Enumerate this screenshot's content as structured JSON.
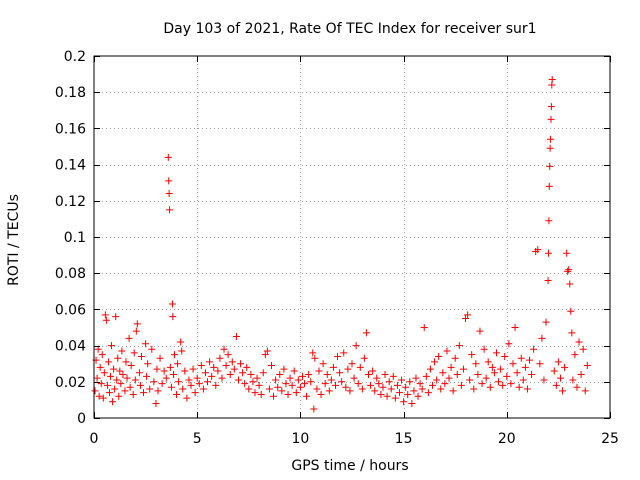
{
  "chart_data": {
    "type": "scatter",
    "title": "Day 103 of 2021, Rate Of TEC Index for receiver sur1",
    "xlabel": "GPS time / hours",
    "ylabel": "ROTI / TECUs",
    "xlim": [
      0,
      25
    ],
    "ylim": [
      0,
      0.2
    ],
    "xticks": [
      0,
      5,
      10,
      15,
      20,
      25
    ],
    "yticks": [
      0,
      0.02,
      0.04,
      0.06,
      0.08,
      0.1,
      0.12,
      0.14,
      0.16,
      0.18,
      0.2
    ],
    "grid": true,
    "marker": "+",
    "color": "#ff0000",
    "series": [
      {
        "points": [
          [
            0.05,
            0.015
          ],
          [
            0.1,
            0.032
          ],
          [
            0.15,
            0.022
          ],
          [
            0.2,
            0.038
          ],
          [
            0.25,
            0.012
          ],
          [
            0.3,
            0.028
          ],
          [
            0.35,
            0.019
          ],
          [
            0.4,
            0.035
          ],
          [
            0.45,
            0.011
          ],
          [
            0.5,
            0.025
          ],
          [
            0.55,
            0.057
          ],
          [
            0.6,
            0.054
          ],
          [
            0.65,
            0.018
          ],
          [
            0.7,
            0.031
          ],
          [
            0.75,
            0.014
          ],
          [
            0.8,
            0.023
          ],
          [
            0.85,
            0.04
          ],
          [
            0.9,
            0.009
          ],
          [
            0.95,
            0.027
          ],
          [
            1.0,
            0.016
          ],
          [
            1.05,
            0.056
          ],
          [
            1.1,
            0.021
          ],
          [
            1.15,
            0.033
          ],
          [
            1.2,
            0.012
          ],
          [
            1.25,
            0.026
          ],
          [
            1.3,
            0.019
          ],
          [
            1.35,
            0.037
          ],
          [
            1.4,
            0.024
          ],
          [
            1.5,
            0.015
          ],
          [
            1.55,
            0.031
          ],
          [
            1.6,
            0.022
          ],
          [
            1.7,
            0.044
          ],
          [
            1.75,
            0.017
          ],
          [
            1.8,
            0.029
          ],
          [
            1.9,
            0.013
          ],
          [
            1.95,
            0.036
          ],
          [
            2.0,
            0.021
          ],
          [
            2.05,
            0.048
          ],
          [
            2.1,
            0.052
          ],
          [
            2.2,
            0.025
          ],
          [
            2.25,
            0.018
          ],
          [
            2.3,
            0.034
          ],
          [
            2.4,
            0.014
          ],
          [
            2.5,
            0.041
          ],
          [
            2.55,
            0.023
          ],
          [
            2.6,
            0.03
          ],
          [
            2.7,
            0.016
          ],
          [
            2.8,
            0.038
          ],
          [
            2.9,
            0.02
          ],
          [
            3.0,
            0.008
          ],
          [
            3.05,
            0.027
          ],
          [
            3.1,
            0.015
          ],
          [
            3.2,
            0.033
          ],
          [
            3.3,
            0.019
          ],
          [
            3.4,
            0.026
          ],
          [
            3.5,
            0.022
          ],
          [
            3.6,
            0.144
          ],
          [
            3.62,
            0.131
          ],
          [
            3.64,
            0.124
          ],
          [
            3.66,
            0.115
          ],
          [
            3.7,
            0.028
          ],
          [
            3.75,
            0.017
          ],
          [
            3.8,
            0.063
          ],
          [
            3.82,
            0.056
          ],
          [
            3.85,
            0.024
          ],
          [
            3.9,
            0.035
          ],
          [
            4.0,
            0.013
          ],
          [
            4.05,
            0.03
          ],
          [
            4.1,
            0.02
          ],
          [
            4.2,
            0.042
          ],
          [
            4.25,
            0.037
          ],
          [
            4.3,
            0.016
          ],
          [
            4.4,
            0.026
          ],
          [
            4.5,
            0.011
          ],
          [
            4.6,
            0.021
          ],
          [
            4.7,
            0.018
          ],
          [
            4.8,
            0.027
          ],
          [
            4.9,
            0.014
          ],
          [
            5.0,
            0.022
          ],
          [
            5.1,
            0.019
          ],
          [
            5.2,
            0.029
          ],
          [
            5.3,
            0.016
          ],
          [
            5.4,
            0.025
          ],
          [
            5.5,
            0.02
          ],
          [
            5.6,
            0.031
          ],
          [
            5.7,
            0.023
          ],
          [
            5.8,
            0.028
          ],
          [
            5.9,
            0.018
          ],
          [
            6.0,
            0.026
          ],
          [
            6.1,
            0.033
          ],
          [
            6.2,
            0.022
          ],
          [
            6.3,
            0.038
          ],
          [
            6.4,
            0.029
          ],
          [
            6.5,
            0.035
          ],
          [
            6.6,
            0.024
          ],
          [
            6.7,
            0.031
          ],
          [
            6.8,
            0.027
          ],
          [
            6.9,
            0.045
          ],
          [
            7.0,
            0.021
          ],
          [
            7.1,
            0.03
          ],
          [
            7.2,
            0.025
          ],
          [
            7.3,
            0.019
          ],
          [
            7.4,
            0.028
          ],
          [
            7.5,
            0.016
          ],
          [
            7.6,
            0.024
          ],
          [
            7.7,
            0.02
          ],
          [
            7.8,
            0.014
          ],
          [
            7.9,
            0.022
          ],
          [
            8.0,
            0.018
          ],
          [
            8.1,
            0.013
          ],
          [
            8.2,
            0.025
          ],
          [
            8.3,
            0.035
          ],
          [
            8.4,
            0.037
          ],
          [
            8.5,
            0.016
          ],
          [
            8.6,
            0.029
          ],
          [
            8.7,
            0.012
          ],
          [
            8.8,
            0.021
          ],
          [
            8.9,
            0.017
          ],
          [
            9.0,
            0.024
          ],
          [
            9.1,
            0.015
          ],
          [
            9.2,
            0.027
          ],
          [
            9.3,
            0.019
          ],
          [
            9.4,
            0.013
          ],
          [
            9.5,
            0.022
          ],
          [
            9.6,
            0.018
          ],
          [
            9.7,
            0.026
          ],
          [
            9.8,
            0.014
          ],
          [
            9.9,
            0.021
          ],
          [
            10.0,
            0.017
          ],
          [
            10.1,
            0.023
          ],
          [
            10.2,
            0.019
          ],
          [
            10.3,
            0.012
          ],
          [
            10.4,
            0.024
          ],
          [
            10.5,
            0.02
          ],
          [
            10.6,
            0.036
          ],
          [
            10.65,
            0.005
          ],
          [
            10.7,
            0.033
          ],
          [
            10.8,
            0.016
          ],
          [
            10.9,
            0.026
          ],
          [
            11.0,
            0.013
          ],
          [
            11.1,
            0.03
          ],
          [
            11.2,
            0.019
          ],
          [
            11.3,
            0.024
          ],
          [
            11.4,
            0.015
          ],
          [
            11.5,
            0.021
          ],
          [
            11.6,
            0.028
          ],
          [
            11.7,
            0.018
          ],
          [
            11.8,
            0.034
          ],
          [
            11.9,
            0.025
          ],
          [
            12.0,
            0.02
          ],
          [
            12.1,
            0.036
          ],
          [
            12.2,
            0.017
          ],
          [
            12.3,
            0.027
          ],
          [
            12.4,
            0.015
          ],
          [
            12.5,
            0.03
          ],
          [
            12.6,
            0.022
          ],
          [
            12.7,
            0.04
          ],
          [
            12.8,
            0.019
          ],
          [
            12.9,
            0.028
          ],
          [
            13.0,
            0.016
          ],
          [
            13.1,
            0.033
          ],
          [
            13.2,
            0.047
          ],
          [
            13.3,
            0.024
          ],
          [
            13.4,
            0.018
          ],
          [
            13.5,
            0.026
          ],
          [
            13.6,
            0.015
          ],
          [
            13.7,
            0.022
          ],
          [
            13.8,
            0.019
          ],
          [
            13.9,
            0.013
          ],
          [
            14.0,
            0.017
          ],
          [
            14.1,
            0.024
          ],
          [
            14.2,
            0.012
          ],
          [
            14.3,
            0.02
          ],
          [
            14.4,
            0.016
          ],
          [
            14.5,
            0.023
          ],
          [
            14.6,
            0.011
          ],
          [
            14.7,
            0.018
          ],
          [
            14.8,
            0.014
          ],
          [
            14.9,
            0.021
          ],
          [
            15.0,
            0.009
          ],
          [
            15.1,
            0.017
          ],
          [
            15.2,
            0.013
          ],
          [
            15.3,
            0.02
          ],
          [
            15.4,
            0.008
          ],
          [
            15.5,
            0.015
          ],
          [
            15.6,
            0.022
          ],
          [
            15.7,
            0.012
          ],
          [
            15.8,
            0.019
          ],
          [
            15.9,
            0.016
          ],
          [
            16.0,
            0.05
          ],
          [
            16.1,
            0.023
          ],
          [
            16.2,
            0.014
          ],
          [
            16.3,
            0.027
          ],
          [
            16.4,
            0.018
          ],
          [
            16.5,
            0.031
          ],
          [
            16.6,
            0.021
          ],
          [
            16.7,
            0.034
          ],
          [
            16.8,
            0.016
          ],
          [
            16.9,
            0.025
          ],
          [
            17.0,
            0.019
          ],
          [
            17.1,
            0.037
          ],
          [
            17.2,
            0.022
          ],
          [
            17.3,
            0.028
          ],
          [
            17.4,
            0.015
          ],
          [
            17.5,
            0.033
          ],
          [
            17.6,
            0.024
          ],
          [
            17.7,
            0.04
          ],
          [
            17.8,
            0.018
          ],
          [
            17.9,
            0.027
          ],
          [
            18.0,
            0.055
          ],
          [
            18.1,
            0.057
          ],
          [
            18.2,
            0.021
          ],
          [
            18.3,
            0.035
          ],
          [
            18.4,
            0.016
          ],
          [
            18.5,
            0.03
          ],
          [
            18.6,
            0.024
          ],
          [
            18.7,
            0.048
          ],
          [
            18.8,
            0.019
          ],
          [
            18.9,
            0.038
          ],
          [
            19.0,
            0.022
          ],
          [
            19.1,
            0.031
          ],
          [
            19.2,
            0.017
          ],
          [
            19.3,
            0.028
          ],
          [
            19.4,
            0.025
          ],
          [
            19.5,
            0.036
          ],
          [
            19.6,
            0.02
          ],
          [
            19.7,
            0.027
          ],
          [
            19.8,
            0.018
          ],
          [
            19.9,
            0.034
          ],
          [
            20.0,
            0.023
          ],
          [
            20.1,
            0.041
          ],
          [
            20.2,
            0.019
          ],
          [
            20.3,
            0.03
          ],
          [
            20.4,
            0.05
          ],
          [
            20.5,
            0.025
          ],
          [
            20.6,
            0.017
          ],
          [
            20.7,
            0.033
          ],
          [
            20.8,
            0.021
          ],
          [
            20.9,
            0.028
          ],
          [
            21.0,
            0.016
          ],
          [
            21.1,
            0.032
          ],
          [
            21.2,
            0.024
          ],
          [
            21.3,
            0.038
          ],
          [
            21.4,
            0.092
          ],
          [
            21.5,
            0.093
          ],
          [
            21.6,
            0.03
          ],
          [
            21.7,
            0.044
          ],
          [
            21.8,
            0.021
          ],
          [
            21.9,
            0.053
          ],
          [
            22.0,
            0.076
          ],
          [
            22.02,
            0.091
          ],
          [
            22.04,
            0.109
          ],
          [
            22.06,
            0.128
          ],
          [
            22.08,
            0.139
          ],
          [
            22.1,
            0.149
          ],
          [
            22.12,
            0.154
          ],
          [
            22.14,
            0.165
          ],
          [
            22.16,
            0.172
          ],
          [
            22.18,
            0.184
          ],
          [
            22.2,
            0.187
          ],
          [
            22.3,
            0.026
          ],
          [
            22.4,
            0.018
          ],
          [
            22.5,
            0.031
          ],
          [
            22.6,
            0.022
          ],
          [
            22.7,
            0.015
          ],
          [
            22.8,
            0.028
          ],
          [
            22.9,
            0.091
          ],
          [
            22.95,
            0.081
          ],
          [
            23.0,
            0.082
          ],
          [
            23.05,
            0.074
          ],
          [
            23.1,
            0.059
          ],
          [
            23.15,
            0.047
          ],
          [
            23.2,
            0.021
          ],
          [
            23.3,
            0.035
          ],
          [
            23.4,
            0.017
          ],
          [
            23.5,
            0.042
          ],
          [
            23.6,
            0.024
          ],
          [
            23.7,
            0.038
          ],
          [
            23.8,
            0.015
          ],
          [
            23.9,
            0.029
          ]
        ]
      }
    ]
  }
}
